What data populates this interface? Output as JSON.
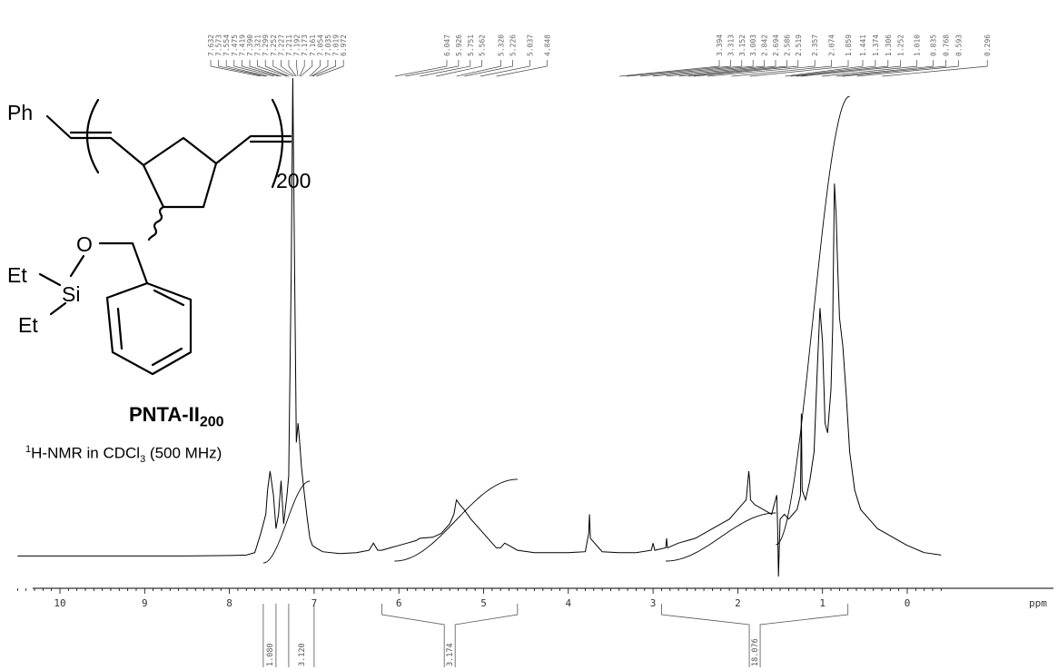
{
  "chart_data": {
    "type": "line",
    "title": "",
    "xlabel": "ppm",
    "ylabel": "",
    "x_axis_reversed": true,
    "xlim": [
      10.5,
      -0.4
    ],
    "x_ticks": [
      "10",
      "9",
      "8",
      "7",
      "6",
      "5",
      "4",
      "3",
      "2",
      "1",
      "0"
    ],
    "x_unit": "ppm",
    "peak_labels": [
      "7.632",
      "7.573",
      "7.554",
      "7.475",
      "7.419",
      "7.390",
      "7.321",
      "7.299",
      "7.252",
      "7.227",
      "7.211",
      "7.192",
      "7.173",
      "7.161",
      "7.054",
      "7.035",
      "7.019",
      "6.972",
      "6.047",
      "5.926",
      "5.751",
      "5.562",
      "5.320",
      "5.226",
      "5.037",
      "4.848",
      "3.394",
      "3.313",
      "3.152",
      "3.003",
      "2.842",
      "2.694",
      "2.586",
      "2.519",
      "2.357",
      "2.074",
      "1.859",
      "1.441",
      "1.374",
      "1.306",
      "1.252",
      "1.010",
      "0.835",
      "0.768",
      "0.593",
      "0.296"
    ],
    "integrals": [
      {
        "range": [
          7.6,
          7.45
        ],
        "value": "1.080"
      },
      {
        "range": [
          7.3,
          7.0
        ],
        "value": "3.120"
      },
      {
        "range": [
          6.2,
          4.6
        ],
        "value": "3.174"
      },
      {
        "range": [
          2.9,
          0.7
        ],
        "value": "18.076"
      }
    ],
    "spectrum": {
      "x": [
        10.5,
        10.0,
        9.5,
        9.0,
        8.5,
        8.0,
        7.8,
        7.7,
        7.63,
        7.57,
        7.55,
        7.52,
        7.48,
        7.45,
        7.42,
        7.39,
        7.36,
        7.32,
        7.3,
        7.27,
        7.252,
        7.23,
        7.21,
        7.19,
        7.17,
        7.15,
        7.12,
        7.08,
        7.05,
        7.02,
        6.98,
        6.9,
        6.7,
        6.5,
        6.35,
        6.3,
        6.25,
        6.2,
        6.1,
        6.0,
        5.9,
        5.8,
        5.75,
        5.6,
        5.5,
        5.4,
        5.35,
        5.32,
        5.28,
        5.23,
        5.15,
        5.05,
        4.95,
        4.85,
        4.8,
        4.75,
        4.6,
        4.4,
        4.2,
        4.0,
        3.8,
        3.76,
        3.75,
        3.74,
        3.6,
        3.4,
        3.2,
        3.02,
        3.0,
        2.98,
        2.85,
        2.84,
        2.83,
        2.7,
        2.5,
        2.3,
        2.1,
        2.0,
        1.9,
        1.87,
        1.86,
        1.85,
        1.8,
        1.7,
        1.6,
        1.54,
        1.53,
        1.52,
        1.5,
        1.45,
        1.4,
        1.35,
        1.3,
        1.26,
        1.25,
        1.24,
        1.2,
        1.15,
        1.1,
        1.06,
        1.03,
        1.0,
        0.97,
        0.94,
        0.9,
        0.88,
        0.86,
        0.84,
        0.82,
        0.8,
        0.76,
        0.72,
        0.68,
        0.62,
        0.55,
        0.45,
        0.35,
        0.25,
        0.15,
        0.0,
        -0.2,
        -0.4
      ],
      "y": [
        0.3,
        0.3,
        0.3,
        0.3,
        0.3,
        0.4,
        0.5,
        1.0,
        5.0,
        9.0,
        14.0,
        18.0,
        13.0,
        6.0,
        9.0,
        16.0,
        7.0,
        13.0,
        17.0,
        60.0,
        100.0,
        60.0,
        24.0,
        28.0,
        24.0,
        19.0,
        14.0,
        8.0,
        4.0,
        2.5,
        2.0,
        1.2,
        0.8,
        1.0,
        1.5,
        3.0,
        1.5,
        1.5,
        2.0,
        2.5,
        3.0,
        3.5,
        4.0,
        4.2,
        5.0,
        7.0,
        9.0,
        12.0,
        11.0,
        10.0,
        8.0,
        6.0,
        4.0,
        2.0,
        2.0,
        3.0,
        1.5,
        1.0,
        1.0,
        1.0,
        1.2,
        5.0,
        9.0,
        4.0,
        1.2,
        1.0,
        1.0,
        1.5,
        3.0,
        1.5,
        2.0,
        4.0,
        2.0,
        3.0,
        4.0,
        6.0,
        8.0,
        10.0,
        12.0,
        18.0,
        16.0,
        12.0,
        11.0,
        10.0,
        9.0,
        13.0,
        6.0,
        -4.0,
        8.0,
        9.0,
        8.0,
        9.0,
        10.0,
        13.0,
        30.0,
        14.0,
        12.0,
        16.0,
        22.0,
        40.0,
        52.0,
        45.0,
        28.0,
        26.0,
        35.0,
        48.0,
        78.0,
        72.0,
        60.0,
        50.0,
        44.0,
        34.0,
        22.0,
        14.0,
        10.0,
        8.0,
        6.0,
        5.0,
        4.0,
        2.5,
        1.0,
        0.5
      ]
    }
  },
  "structure": {
    "ph_label": "Ph",
    "repeat_count": "200",
    "o_label": "O",
    "si_label": "Si",
    "et_upper": "Et",
    "et_lower": "Et"
  },
  "compound": {
    "name_main": "PNTA-II",
    "name_sub": "200"
  },
  "caption": {
    "superscript": "1",
    "prefix": "H-NMR in CDCl",
    "subscript": "3",
    "suffix": " (500 MHz)"
  }
}
